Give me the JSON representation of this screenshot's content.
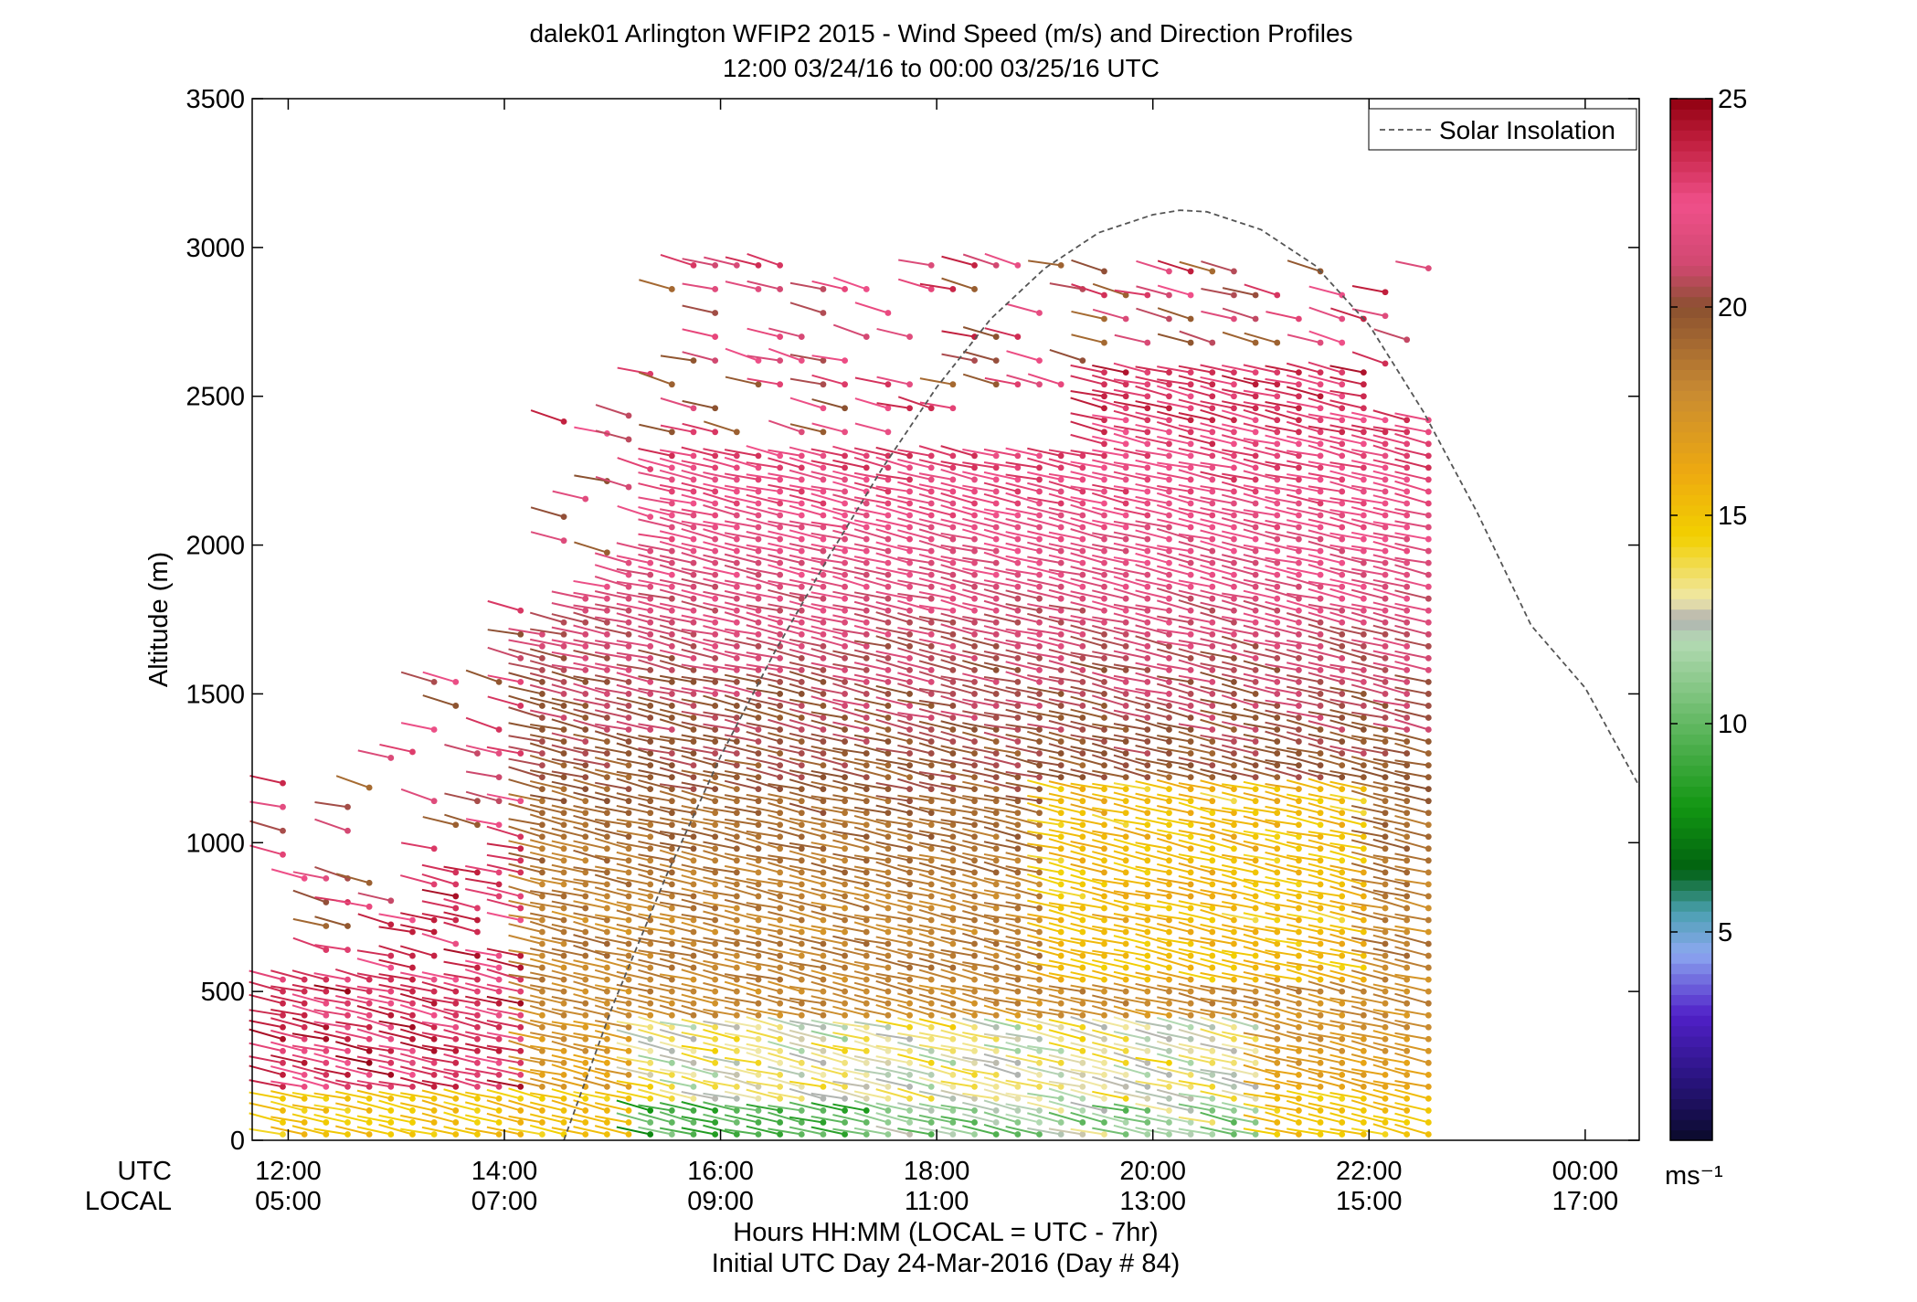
{
  "chart_data": {
    "type": "scatter",
    "subtype": "wind-barb-profile",
    "title": "dalek01 Arlington WFIP2 2015 - Wind Speed (m/s) and Direction Profiles",
    "subtitle": "12:00 03/24/16 to 00:00 03/25/16  UTC",
    "ylabel": "Altitude (m)",
    "xlabel": "Hours HH:MM  (LOCAL = UTC - 7hr)",
    "xlabel2": "Initial UTC Day 24-Mar-2016 (Day # 84)",
    "row_label_utc": "UTC",
    "row_label_local": "LOCAL",
    "xlim_hours": [
      11.6667,
      24.5
    ],
    "ylim": [
      0,
      3500
    ],
    "y_ticks": [
      "0",
      "500",
      "1000",
      "1500",
      "2000",
      "2500",
      "3000",
      "3500"
    ],
    "y_tick_values": [
      0,
      500,
      1000,
      1500,
      2000,
      2500,
      3000,
      3500
    ],
    "x_tick_values": [
      12,
      14,
      16,
      18,
      20,
      22,
      24
    ],
    "x_ticks_utc": [
      "12:00",
      "14:00",
      "16:00",
      "18:00",
      "20:00",
      "22:00",
      "00:00"
    ],
    "x_ticks_local": [
      "05:00",
      "07:00",
      "09:00",
      "11:00",
      "13:00",
      "15:00",
      "17:00"
    ],
    "legend": {
      "label": "Solar Insolation",
      "placement": "top-right",
      "style": "dashed",
      "color": "#555555"
    },
    "solar_insolation": {
      "x": [
        14.55,
        15.0,
        15.5,
        16.0,
        16.5,
        17.0,
        17.5,
        18.0,
        18.5,
        19.0,
        19.5,
        20.0,
        20.25,
        20.5,
        21.0,
        21.5,
        22.0,
        22.5,
        23.0,
        23.5,
        24.0,
        24.5
      ],
      "y": [
        0,
        450,
        890,
        1290,
        1640,
        1960,
        2260,
        2530,
        2760,
        2930,
        3050,
        3110,
        3125,
        3120,
        3060,
        2940,
        2740,
        2450,
        2110,
        1730,
        1520,
        1190
      ]
    },
    "colorbar": {
      "label": "ms⁻¹",
      "range": [
        0,
        25
      ],
      "ticks": [
        "5",
        "10",
        "15",
        "20",
        "25"
      ],
      "tick_values": [
        5,
        10,
        15,
        20,
        25
      ],
      "colorscale": [
        {
          "v": 0,
          "color": "#0a0a2a"
        },
        {
          "v": 1.5,
          "color": "#2a1480"
        },
        {
          "v": 3,
          "color": "#5020c8"
        },
        {
          "v": 4.5,
          "color": "#8ca8f0"
        },
        {
          "v": 5.5,
          "color": "#4aa0b0"
        },
        {
          "v": 6.5,
          "color": "#006010"
        },
        {
          "v": 8,
          "color": "#129612"
        },
        {
          "v": 10,
          "color": "#62b862"
        },
        {
          "v": 12,
          "color": "#b4dab4"
        },
        {
          "v": 12.5,
          "color": "#b0b0b0"
        },
        {
          "v": 13,
          "color": "#f0e8a8"
        },
        {
          "v": 14.5,
          "color": "#f2d000"
        },
        {
          "v": 16,
          "color": "#eeaa10"
        },
        {
          "v": 18,
          "color": "#c88a32"
        },
        {
          "v": 20,
          "color": "#8a5030"
        },
        {
          "v": 21,
          "color": "#d04870"
        },
        {
          "v": 22.5,
          "color": "#f0508a"
        },
        {
          "v": 24,
          "color": "#c01e3c"
        },
        {
          "v": 25,
          "color": "#900010"
        }
      ]
    },
    "barb_grid": {
      "x_start_hour": 11.95,
      "x_step_hours": 0.2,
      "columns": 54,
      "altitude_step_m": 40,
      "direction_deg": 285,
      "note": "wind speed increases with altitude from ~8-13 m/s near the surface to 18-25 m/s aloft"
    }
  }
}
